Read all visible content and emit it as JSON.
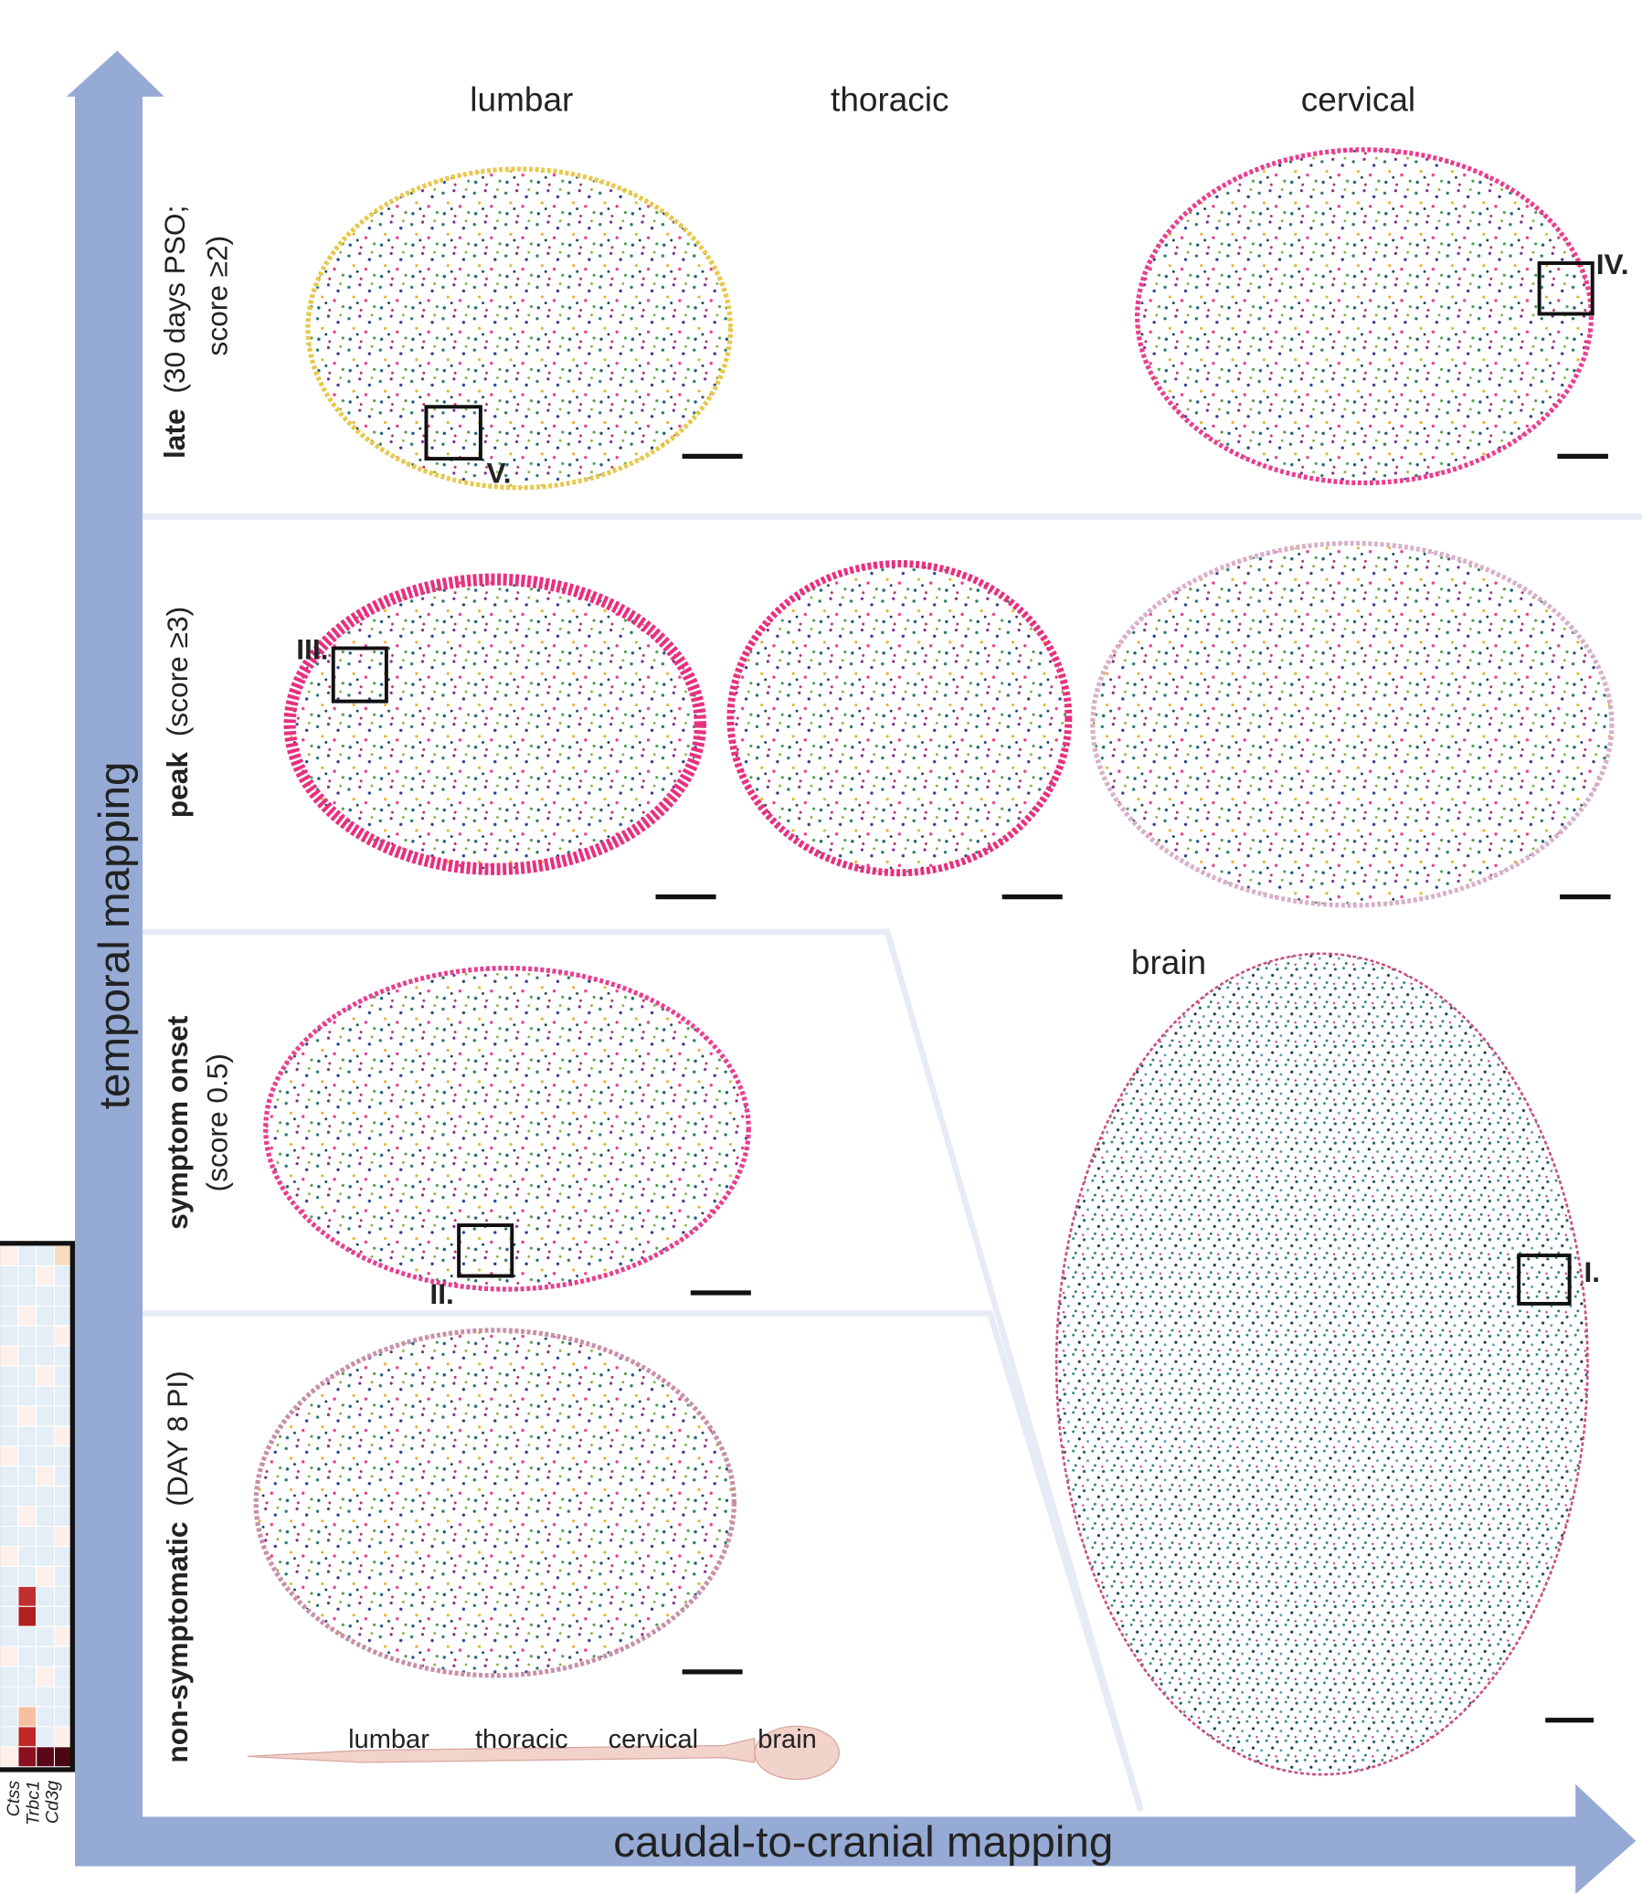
{
  "column_headers": [
    "lumbar",
    "thoracic",
    "cervical"
  ],
  "brain_label": "brain",
  "rows": [
    {
      "bold": "late",
      "normal": "(30 days PSO;",
      "line2": "score ≥2)"
    },
    {
      "bold": "peak",
      "normal": "(score ≥3)"
    },
    {
      "bold": "symptom onset",
      "line2": "(score 0.5)"
    },
    {
      "bold": "non-symptomatic",
      "normal": "(DAY 8 PI)"
    }
  ],
  "roi_labels": [
    "I.",
    "II.",
    "III.",
    "IV.",
    "V."
  ],
  "axes": {
    "vertical": "temporal mapping",
    "horizontal": "caudal-to-cranial mapping"
  },
  "spine_diagram": [
    "lumbar",
    "thoracic",
    "cervical",
    "brain"
  ],
  "heatmap_genes": [
    "Ctss",
    "Trbc1",
    "Cd3g"
  ]
}
